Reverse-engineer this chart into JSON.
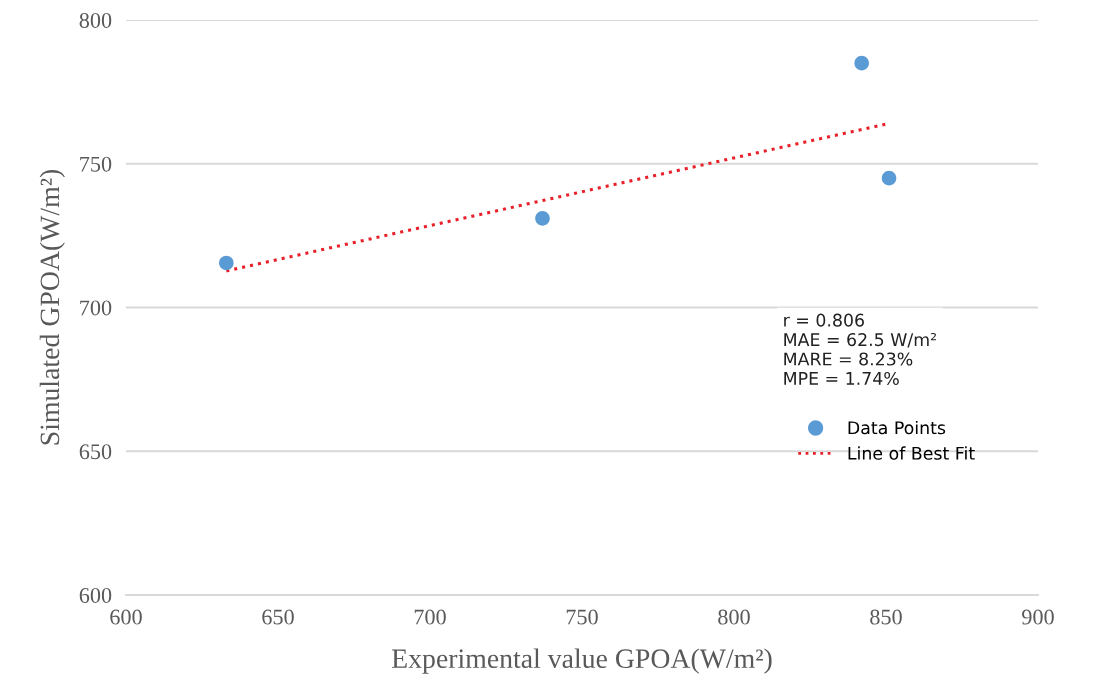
{
  "chart_data": {
    "type": "scatter",
    "xlabel": "Experimental value GPOA(W/m²)",
    "ylabel": "Simulated GPOA(W/m²)",
    "series": [
      {
        "name": "Data Points",
        "color": "#5b9bd5",
        "marker": "circle",
        "x": [
          633,
          737,
          842,
          851
        ],
        "values": [
          715.5,
          731,
          785,
          745
        ]
      },
      {
        "name": "Line of Best Fit",
        "type": "line",
        "color": "#e8202a",
        "line_style": "dotted",
        "marker": "none",
        "x": [
          633,
          850
        ],
        "values": [
          712.7,
          763.8
        ]
      }
    ],
    "annotations": [
      "r = 0.806",
      "MAE = 62.5 W/m²",
      "MARE = 8.23%",
      "MPE = 1.74%"
    ],
    "xlim": [
      600,
      900
    ],
    "xticks": [
      600,
      650,
      700,
      750,
      800,
      850,
      900
    ],
    "ylim": [
      600,
      800
    ],
    "yticks": [
      600,
      650,
      700,
      750,
      800
    ],
    "grid": "y",
    "legend": "right"
  }
}
